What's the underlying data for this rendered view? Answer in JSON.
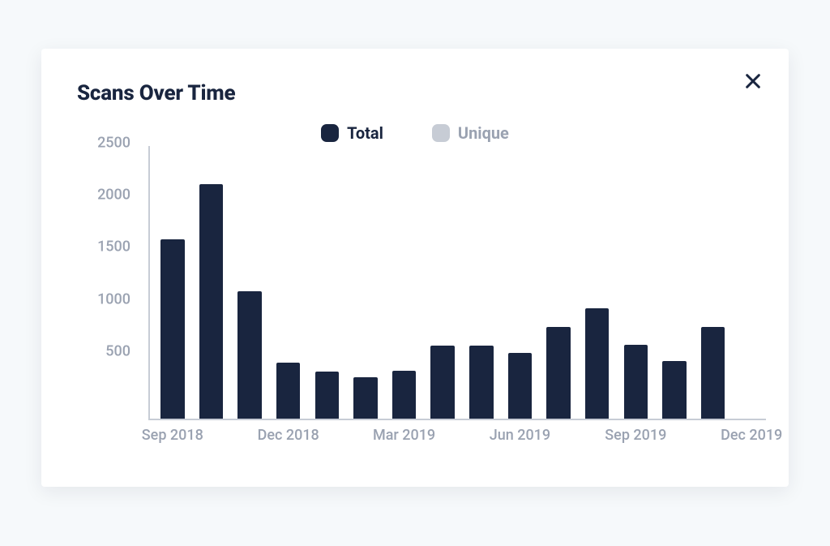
{
  "card": {
    "title": "Scans Over Time",
    "title_color": "#19253f",
    "background": "#ffffff",
    "page_background": "#f6f9fb"
  },
  "close": {
    "color": "#19253f",
    "stroke_width": 3.2
  },
  "legend": {
    "items": [
      {
        "label": "Total",
        "color": "#19253f",
        "label_color": "#19253f"
      },
      {
        "label": "Unique",
        "color": "#c7ccd5",
        "label_color": "#9aa2b1"
      }
    ],
    "swatch_radius": 7
  },
  "chart": {
    "type": "bar",
    "y": {
      "min": 0,
      "max": 2600,
      "ticks": [
        500,
        1000,
        1500,
        2000,
        2500
      ],
      "label_color": "#9aa2b1",
      "label_fontsize": 18
    },
    "x": {
      "categories": [
        "Sep 2018",
        "Oct 2018",
        "Nov 2018",
        "Dec 2018",
        "Jan 2019",
        "Feb 2019",
        "Mar 2019",
        "Apr 2019",
        "May 2019",
        "Jun 2019",
        "Jul 2019",
        "Aug 2019",
        "Sep 2019",
        "Oct 2019",
        "Nov 2019",
        "Dec 2019"
      ],
      "ticks_shown": [
        "Sep 2018",
        "Dec 2018",
        "Mar 2019",
        "Jun 2019",
        "Sep 2019",
        "Dec 2019"
      ],
      "label_color": "#9aa2b1",
      "label_fontsize": 18
    },
    "series": {
      "values": [
        1720,
        2250,
        1220,
        540,
        450,
        400,
        460,
        700,
        700,
        630,
        880,
        1060,
        710,
        550,
        880,
        0
      ],
      "bar_color": "#19253f",
      "bar_width_frac": 0.62
    },
    "axis_line_color": "#c7ccd5",
    "axis_line_width": 2
  }
}
